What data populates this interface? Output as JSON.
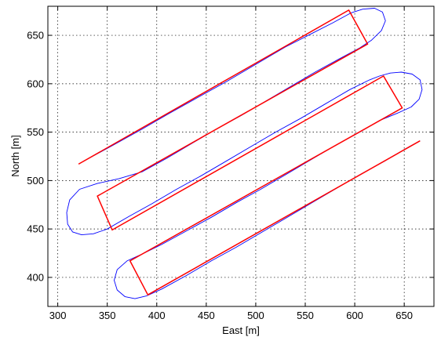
{
  "chart_data": {
    "type": "line",
    "title": "",
    "xlabel": "East [m]",
    "ylabel": "North [m]",
    "xlim": [
      290,
      680
    ],
    "ylim": [
      370,
      680
    ],
    "grid": true,
    "x_ticks": [
      300,
      350,
      400,
      450,
      500,
      550,
      600,
      650
    ],
    "y_ticks": [
      400,
      450,
      500,
      550,
      600,
      650
    ],
    "x_tick_labels": [
      "300",
      "350",
      "400",
      "450",
      "500",
      "550",
      "600",
      "650"
    ],
    "y_tick_labels": [
      "400",
      "450",
      "500",
      "550",
      "600",
      "650"
    ],
    "series": [
      {
        "color": "#ff0000",
        "style": "solid",
        "points": [
          [
            321,
            517
          ],
          [
            594,
            676
          ],
          [
            613,
            641
          ],
          [
            340,
            484
          ],
          [
            355,
            449
          ],
          [
            629,
            608
          ],
          [
            648,
            575
          ],
          [
            373,
            417
          ],
          [
            391,
            382
          ],
          [
            666,
            541
          ]
        ]
      },
      {
        "color": "#0000ff",
        "style": "thin",
        "points": [
          [
            326,
            520
          ],
          [
            355,
            536
          ],
          [
            385,
            553
          ],
          [
            412,
            569
          ],
          [
            440,
            585
          ],
          [
            470,
            602
          ],
          [
            500,
            620
          ],
          [
            530,
            638
          ],
          [
            555,
            651
          ],
          [
            578,
            663
          ],
          [
            596,
            673
          ],
          [
            608,
            677
          ],
          [
            620,
            678
          ],
          [
            628,
            674
          ],
          [
            631,
            665
          ],
          [
            627,
            655
          ],
          [
            617,
            645
          ],
          [
            605,
            637
          ],
          [
            585,
            626
          ],
          [
            560,
            612
          ],
          [
            535,
            597
          ],
          [
            510,
            582
          ],
          [
            485,
            567
          ],
          [
            460,
            553
          ],
          [
            435,
            538
          ],
          [
            410,
            523
          ],
          [
            385,
            509
          ],
          [
            362,
            502
          ],
          [
            340,
            497
          ],
          [
            322,
            491
          ],
          [
            312,
            480
          ],
          [
            309,
            467
          ],
          [
            310,
            455
          ],
          [
            315,
            447
          ],
          [
            324,
            444
          ],
          [
            336,
            445
          ],
          [
            350,
            450
          ],
          [
            372,
            463
          ],
          [
            395,
            476
          ],
          [
            420,
            491
          ],
          [
            445,
            505
          ],
          [
            470,
            520
          ],
          [
            495,
            535
          ],
          [
            520,
            550
          ],
          [
            545,
            564
          ],
          [
            570,
            579
          ],
          [
            595,
            594
          ],
          [
            615,
            604
          ],
          [
            625,
            608
          ],
          [
            636,
            611
          ],
          [
            647,
            612
          ],
          [
            658,
            610
          ],
          [
            666,
            604
          ],
          [
            668,
            594
          ],
          [
            665,
            584
          ],
          [
            657,
            576
          ],
          [
            644,
            570
          ],
          [
            625,
            562
          ],
          [
            605,
            550
          ],
          [
            580,
            536
          ],
          [
            555,
            521
          ],
          [
            530,
            506
          ],
          [
            505,
            491
          ],
          [
            480,
            477
          ],
          [
            455,
            462
          ],
          [
            430,
            448
          ],
          [
            405,
            434
          ],
          [
            385,
            424
          ],
          [
            370,
            417
          ],
          [
            360,
            408
          ],
          [
            357,
            397
          ],
          [
            360,
            387
          ],
          [
            368,
            380
          ],
          [
            378,
            378
          ],
          [
            390,
            381
          ],
          [
            405,
            388
          ],
          [
            430,
            402
          ],
          [
            455,
            417
          ],
          [
            480,
            431
          ],
          [
            505,
            446
          ],
          [
            530,
            461
          ],
          [
            555,
            476
          ],
          [
            580,
            491
          ],
          [
            605,
            506
          ],
          [
            630,
            520
          ],
          [
            655,
            535
          ],
          [
            666,
            541
          ]
        ]
      }
    ]
  }
}
